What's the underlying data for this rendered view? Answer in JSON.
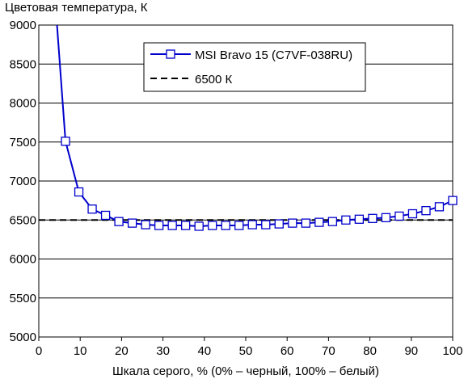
{
  "chart_data": {
    "type": "line",
    "title": "",
    "ylabel": "Цветовая температура, К",
    "xlabel": "Шкала серого, % (0% – черный, 100% – белый)",
    "xlim": [
      0,
      100
    ],
    "ylim": [
      5000,
      9000
    ],
    "x_ticks": [
      0,
      10,
      20,
      30,
      40,
      50,
      60,
      70,
      80,
      90,
      100
    ],
    "y_ticks": [
      5000,
      5500,
      6000,
      6500,
      7000,
      7500,
      8000,
      8500,
      9000
    ],
    "grid": "horizontal",
    "legend_position": "top-center",
    "series": [
      {
        "name": "MSI Bravo 15 (C7VF-038RU)",
        "color": "#0000cc",
        "marker": "open-square",
        "x": [
          6.45,
          9.68,
          12.9,
          16.13,
          19.35,
          22.58,
          25.81,
          29.03,
          32.26,
          35.48,
          38.71,
          41.94,
          45.16,
          48.39,
          51.61,
          54.84,
          58.06,
          61.29,
          64.52,
          67.74,
          70.97,
          74.19,
          77.42,
          80.65,
          83.87,
          87.1,
          90.32,
          93.55,
          96.77,
          100
        ],
        "y": [
          7510,
          6860,
          6640,
          6560,
          6480,
          6460,
          6440,
          6430,
          6430,
          6430,
          6420,
          6430,
          6430,
          6430,
          6440,
          6440,
          6450,
          6460,
          6460,
          6470,
          6480,
          6500,
          6510,
          6520,
          6530,
          6550,
          6580,
          6620,
          6670,
          6750
        ],
        "curve_start": {
          "x": 4.4,
          "y": 9000
        }
      },
      {
        "name": "6500 К",
        "color": "#000000",
        "style": "dashed",
        "x": [
          0,
          100
        ],
        "y": [
          6500,
          6500
        ]
      }
    ]
  }
}
